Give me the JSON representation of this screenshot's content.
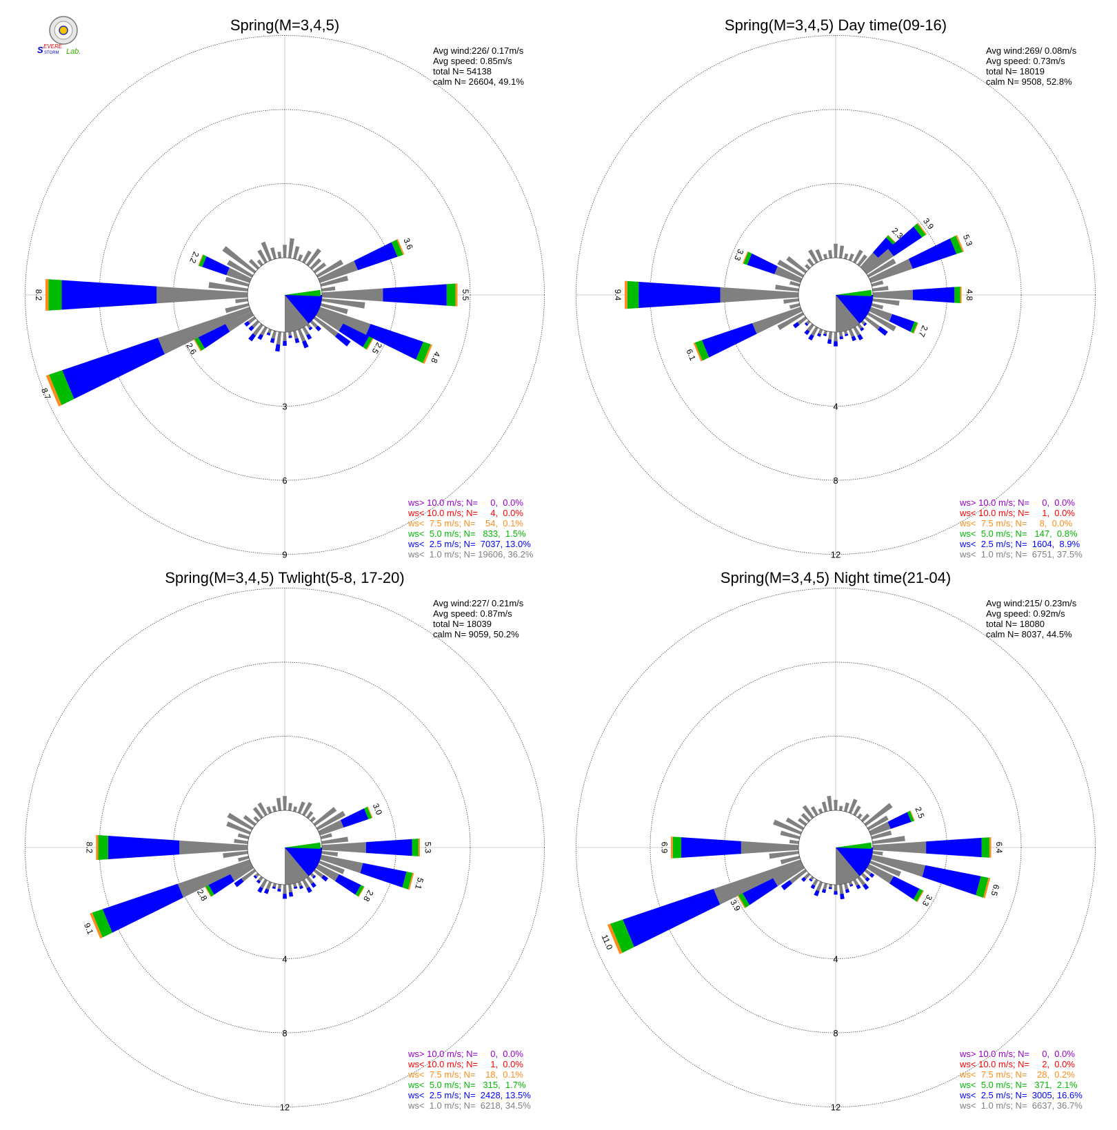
{
  "logo": {
    "text": "SevereStorm Lab.",
    "colors": [
      "#0000cc",
      "#dd0000",
      "#33aa00"
    ]
  },
  "bin_colors": {
    "gt10": "#9900cc",
    "lt10": "#ff0000",
    "lt7_5": "#ff8c1a",
    "lt5": "#00bb00",
    "lt2_5": "#0000ff",
    "lt1": "#808080"
  },
  "chart_data": [
    {
      "type": "windrose",
      "title": "Spring(M=3,4,5)",
      "stats": [
        "Avg wind:226/ 0.17m/s",
        "Avg speed: 0.85m/s",
        "total N=      54138",
        "calm N=  26604,  49.1%"
      ],
      "ring_labels": [
        "3",
        "6",
        "9"
      ],
      "rmax": 9,
      "labeled_petals": [
        {
          "dir": 67.5,
          "value": 3.6,
          "label": "3.6"
        },
        {
          "dir": 90,
          "value": 5.5,
          "label": "5.5"
        },
        {
          "dir": 112.5,
          "value": 4.8,
          "label": "4.8"
        },
        {
          "dir": 120,
          "value": 2.5,
          "label": "2.5"
        },
        {
          "dir": 247.5,
          "value": 8.7,
          "label": "8.7"
        },
        {
          "dir": 240,
          "value": 2.6,
          "label": "2.6"
        },
        {
          "dir": 270,
          "value": 8.2,
          "label": "8.2"
        },
        {
          "dir": 292.5,
          "value": 2.2,
          "label": "2.2"
        }
      ],
      "legend": [
        {
          "text": "ws> 10.0 m/s; N=     0,  0.0%",
          "color": "#9900cc"
        },
        {
          "text": "ws< 10.0 m/s; N=     4,  0.0%",
          "color": "#ff0000"
        },
        {
          "text": "ws<  7.5 m/s; N=    54,  0.1%",
          "color": "#ff8c1a"
        },
        {
          "text": "ws<  5.0 m/s; N=   833,  1.5%",
          "color": "#00bb00"
        },
        {
          "text": "ws<  2.5 m/s; N=  7037, 13.0%",
          "color": "#0000ff"
        },
        {
          "text": "ws<  1.0 m/s; N= 19606, 36.2%",
          "color": "#808080"
        }
      ]
    },
    {
      "type": "windrose",
      "title": "Spring(M=3,4,5) Day time(09-16)",
      "stats": [
        "Avg wind:269/ 0.08m/s",
        "Avg speed: 0.73m/s",
        "total N=      18019",
        "calm N=  9508,  52.8%"
      ],
      "ring_labels": [
        "4",
        "8",
        "12"
      ],
      "rmax": 12,
      "labeled_petals": [
        {
          "dir": 45,
          "value": 2.3,
          "label": "2.3"
        },
        {
          "dir": 52.5,
          "value": 3.9,
          "label": "3.9"
        },
        {
          "dir": 67.5,
          "value": 5.3,
          "label": "5.3"
        },
        {
          "dir": 90,
          "value": 4.8,
          "label": "4.8"
        },
        {
          "dir": 112.5,
          "value": 2.7,
          "label": "2.7"
        },
        {
          "dir": 247.5,
          "value": 6.1,
          "label": "6.1"
        },
        {
          "dir": 270,
          "value": 9.4,
          "label": "9.4"
        },
        {
          "dir": 292.5,
          "value": 3.3,
          "label": "3.3"
        }
      ],
      "legend": [
        {
          "text": "ws> 10.0 m/s; N=     0,  0.0%",
          "color": "#9900cc"
        },
        {
          "text": "ws< 10.0 m/s; N=     1,  0.0%",
          "color": "#ff0000"
        },
        {
          "text": "ws<  7.5 m/s; N=     8,  0.0%",
          "color": "#ff8c1a"
        },
        {
          "text": "ws<  5.0 m/s; N=   147,  0.8%",
          "color": "#00bb00"
        },
        {
          "text": "ws<  2.5 m/s; N=  1604,  8.9%",
          "color": "#0000ff"
        },
        {
          "text": "ws<  1.0 m/s; N=  6751, 37.5%",
          "color": "#808080"
        }
      ]
    },
    {
      "type": "windrose",
      "title": "Spring(M=3,4,5) Twlight(5-8, 17-20)",
      "stats": [
        "Avg wind:227/ 0.21m/s",
        "Avg speed: 0.87m/s",
        "total N=      18039",
        "calm N=  9059,  50.2%"
      ],
      "ring_labels": [
        "4",
        "8",
        "12"
      ],
      "rmax": 12,
      "labeled_petals": [
        {
          "dir": 67.5,
          "value": 3.0,
          "label": "3.0"
        },
        {
          "dir": 90,
          "value": 5.3,
          "label": "5.3"
        },
        {
          "dir": 105,
          "value": 5.1,
          "label": "5.1"
        },
        {
          "dir": 120,
          "value": 2.8,
          "label": "2.8"
        },
        {
          "dir": 247.5,
          "value": 9.1,
          "label": "9.1"
        },
        {
          "dir": 240,
          "value": 2.8,
          "label": "2.8"
        },
        {
          "dir": 270,
          "value": 8.2,
          "label": "8.2"
        }
      ],
      "legend": [
        {
          "text": "ws> 10.0 m/s; N=     0,  0.0%",
          "color": "#9900cc"
        },
        {
          "text": "ws< 10.0 m/s; N=     1,  0.0%",
          "color": "#ff0000"
        },
        {
          "text": "ws<  7.5 m/s; N=    18,  0.1%",
          "color": "#ff8c1a"
        },
        {
          "text": "ws<  5.0 m/s; N=   315,  1.7%",
          "color": "#00bb00"
        },
        {
          "text": "ws<  2.5 m/s; N=  2428, 13.5%",
          "color": "#0000ff"
        },
        {
          "text": "ws<  1.0 m/s; N=  6218, 34.5%",
          "color": "#808080"
        }
      ]
    },
    {
      "type": "windrose",
      "title": "Spring(M=3,4,5) Night time(21-04)",
      "stats": [
        "Avg wind:215/ 0.23m/s",
        "Avg speed: 0.92m/s",
        "total N=      18080",
        "calm N=  8037,  44.5%"
      ],
      "ring_labels": [
        "4",
        "8",
        "12"
      ],
      "rmax": 12,
      "labeled_petals": [
        {
          "dir": 67.5,
          "value": 2.5,
          "label": "2.5"
        },
        {
          "dir": 90,
          "value": 6.4,
          "label": "6.4"
        },
        {
          "dir": 105,
          "value": 6.5,
          "label": "6.5"
        },
        {
          "dir": 120,
          "value": 3.3,
          "label": "3.3"
        },
        {
          "dir": 247.5,
          "value": 11.0,
          "label": "11.0"
        },
        {
          "dir": 240,
          "value": 3.9,
          "label": "3.9"
        },
        {
          "dir": 270,
          "value": 6.9,
          "label": "6.9"
        }
      ],
      "legend": [
        {
          "text": "ws> 10.0 m/s; N=     0,  0.0%",
          "color": "#9900cc"
        },
        {
          "text": "ws< 10.0 m/s; N=     2,  0.0%",
          "color": "#ff0000"
        },
        {
          "text": "ws<  7.5 m/s; N=    28,  0.2%",
          "color": "#ff8c1a"
        },
        {
          "text": "ws<  5.0 m/s; N=   371,  2.1%",
          "color": "#00bb00"
        },
        {
          "text": "ws<  2.5 m/s; N=  3005, 16.6%",
          "color": "#0000ff"
        },
        {
          "text": "ws<  1.0 m/s; N=  6637, 36.7%",
          "color": "#808080"
        }
      ]
    }
  ]
}
